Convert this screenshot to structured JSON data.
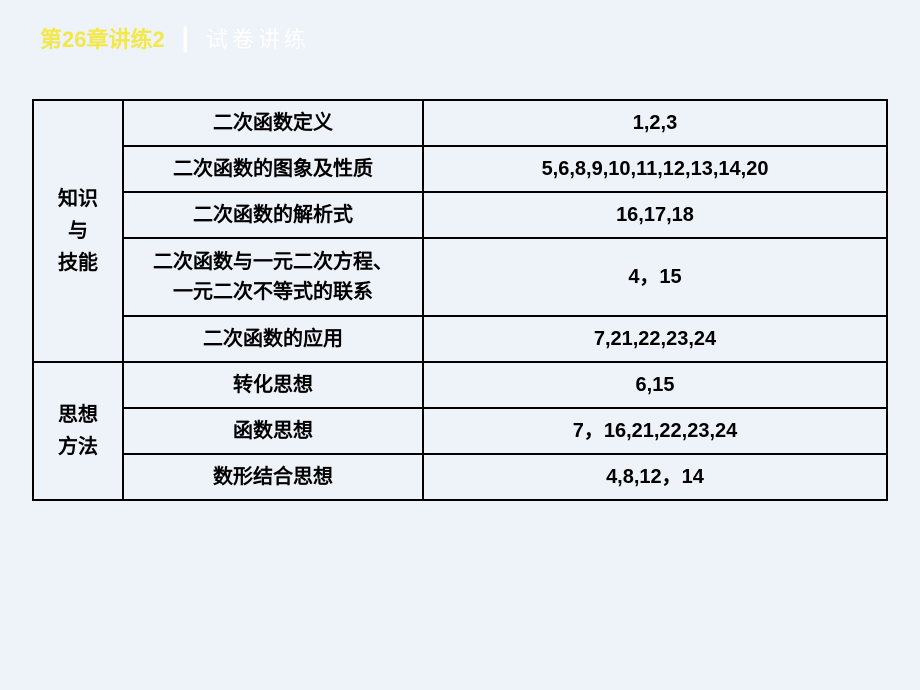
{
  "header": {
    "title": "第26章讲练2",
    "separator": "┃",
    "subtitle": "试卷讲练"
  },
  "table": {
    "categories": [
      {
        "label": "知识\n与\n技能",
        "rows": [
          {
            "topic": "二次函数定义",
            "numbers": "1,2,3"
          },
          {
            "topic": "二次函数的图象及性质",
            "numbers": "5,6,8,9,10,11,12,13,14,20"
          },
          {
            "topic": "二次函数的解析式",
            "numbers": "16,17,18"
          },
          {
            "topic": "二次函数与一元二次方程、\n一元二次不等式的联系",
            "numbers": "4，15"
          },
          {
            "topic": "二次函数的应用",
            "numbers": "7,21,22,23,24"
          }
        ]
      },
      {
        "label": "思想\n方法",
        "rows": [
          {
            "topic": "转化思想",
            "numbers": "6,15"
          },
          {
            "topic": "函数思想",
            "numbers": "7，16,21,22,23,24"
          },
          {
            "topic": "数形结合思想",
            "numbers": "4,8,12，14"
          }
        ]
      }
    ]
  }
}
